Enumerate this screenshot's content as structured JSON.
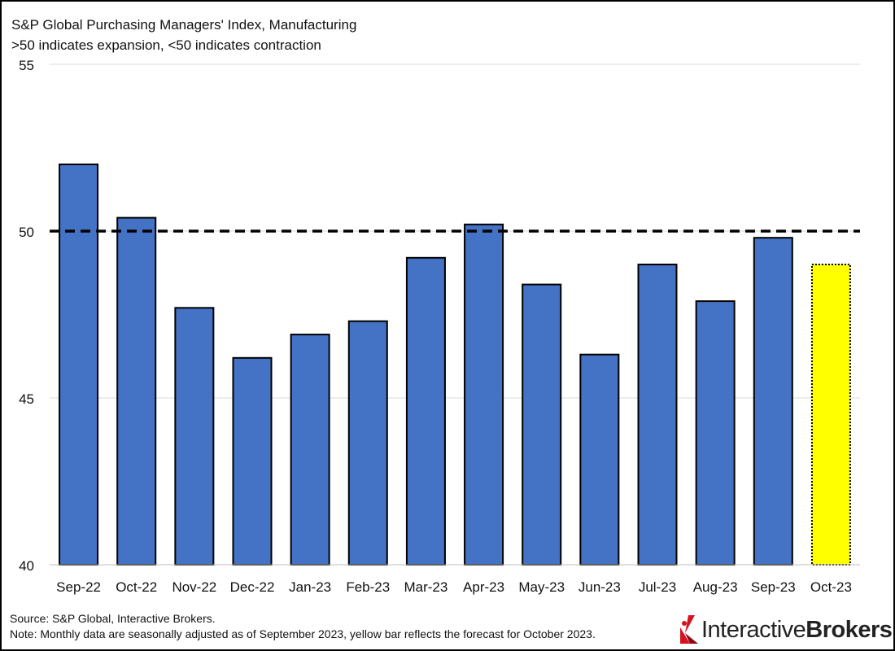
{
  "header": {
    "title": "S&P Global Purchasing Managers' Index, Manufacturing",
    "subtitle": ">50 indicates expansion, <50 indicates contraction"
  },
  "footer": {
    "source": "Source: S&P Global, Interactive Brokers.",
    "note": "Note: Monthly data are seasonally adjusted as of September 2023, yellow bar reflects the forecast for October 2023."
  },
  "logo": {
    "word1": "Interactive",
    "word2": "Brokers",
    "icon": "interactive-brokers-logo-icon"
  },
  "colors": {
    "bar": "#4472C4",
    "forecast_bar": "#FFFF00",
    "reference_line": "#000000",
    "grid": "#D9D9D9"
  },
  "chart_data": {
    "type": "bar",
    "title": "S&P Global Purchasing Managers' Index, Manufacturing",
    "subtitle": ">50 indicates expansion, <50 indicates contraction",
    "xlabel": "",
    "ylabel": "",
    "categories": [
      "Sep-22",
      "Oct-22",
      "Nov-22",
      "Dec-22",
      "Jan-23",
      "Feb-23",
      "Mar-23",
      "Apr-23",
      "May-23",
      "Jun-23",
      "Jul-23",
      "Aug-23",
      "Sep-23",
      "Oct-23"
    ],
    "values": [
      52.0,
      50.4,
      47.7,
      46.2,
      46.9,
      47.3,
      49.2,
      50.2,
      48.4,
      46.3,
      49.0,
      47.9,
      49.8,
      49.0
    ],
    "forecast_index": 13,
    "ylim": [
      40,
      55
    ],
    "yticks": [
      40,
      45,
      50,
      55
    ],
    "reference_line": {
      "value": 50,
      "style": "dashed"
    },
    "grid": true,
    "legend": "none"
  }
}
